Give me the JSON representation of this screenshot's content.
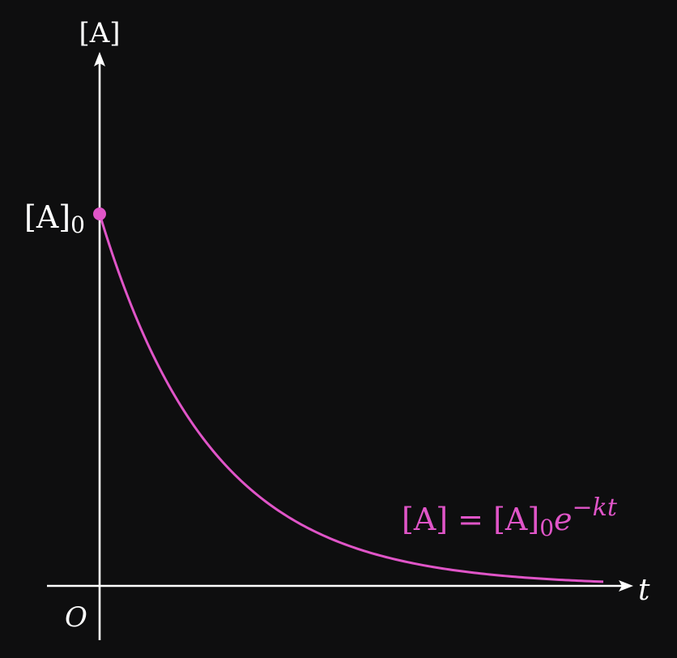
{
  "chart_data": {
    "type": "line",
    "title": "",
    "xlabel": "t",
    "ylabel": "[A]",
    "origin_label": "O",
    "y0_label": "[A]",
    "y0_subscript": "0",
    "equation": {
      "lhs": "[A] = [A]",
      "sub": "0",
      "base": "e",
      "exponent": "−kt"
    },
    "x_range": [
      0,
      6
    ],
    "y_range": [
      0,
      1
    ],
    "A0": 1,
    "k": 0.75,
    "grid": false,
    "colors": {
      "axes": "#ffffff",
      "curve": "#e055c8",
      "background": "#0e0e0f"
    }
  }
}
